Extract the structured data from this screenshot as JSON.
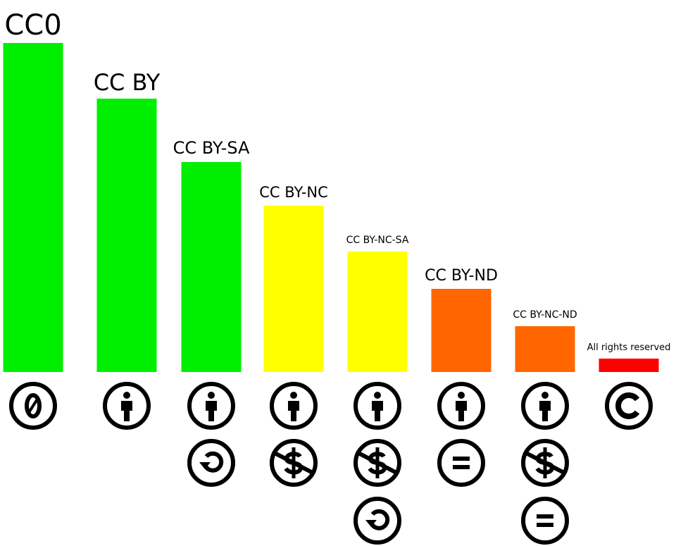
{
  "chart_data": {
    "type": "bar",
    "categories": [
      "CC0",
      "CC BY",
      "CC BY-SA",
      "CC BY-NC",
      "CC BY-NC-SA",
      "CC BY-ND",
      "CC BY-NC-ND",
      "All rights reserved"
    ],
    "values": [
      467,
      388,
      298,
      236,
      171,
      118,
      65,
      19
    ],
    "colors": [
      "#00ee00",
      "#00ee00",
      "#00ee00",
      "#ffff00",
      "#ffff00",
      "#ff6600",
      "#ff6600",
      "#ff0000"
    ],
    "ylim": [
      0,
      467
    ]
  }
}
